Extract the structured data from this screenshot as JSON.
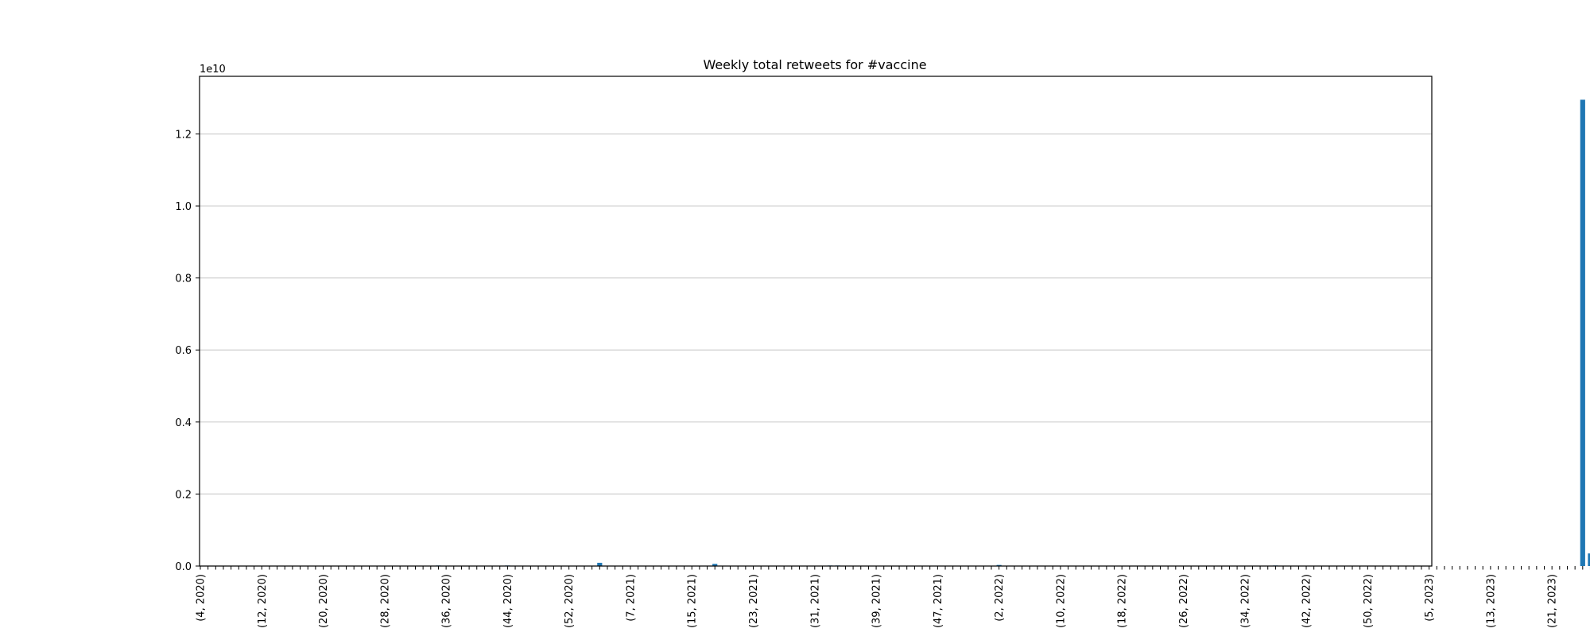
{
  "chart_data": {
    "type": "bar",
    "title": "Weekly total retweets for #vaccine",
    "xlabel": "",
    "ylabel": "",
    "y_offset_label": "1e10",
    "y_scale": 10000000000,
    "ylim": [
      0,
      13600000000
    ],
    "grid": "horizontal",
    "bar_color": "#1f77b4",
    "yticks": [
      0,
      2000000000,
      4000000000,
      6000000000,
      8000000000,
      10000000000,
      12000000000
    ],
    "ytick_labels": [
      "0.0",
      "0.2",
      "0.4",
      "0.6",
      "0.8",
      "1.0",
      "1.2"
    ],
    "start_week": 4,
    "start_year": 2020,
    "label_every": 8,
    "values": [
      0,
      0,
      0,
      0,
      0,
      0,
      0,
      0,
      0,
      0,
      0,
      0,
      0,
      0,
      0,
      0,
      0,
      0,
      0,
      0,
      0,
      0,
      0,
      0,
      0,
      0,
      0,
      0,
      0,
      0,
      0,
      15000000,
      0,
      0,
      0,
      0,
      0,
      0,
      0,
      0,
      15000000,
      0,
      0,
      0,
      0,
      0,
      0,
      0,
      0,
      0,
      0,
      0,
      90000000,
      0,
      0,
      0,
      0,
      0,
      0,
      0,
      0,
      0,
      0,
      0,
      0,
      0,
      0,
      60000000,
      0,
      0,
      0,
      0,
      0,
      0,
      0,
      0,
      0,
      0,
      0,
      0,
      0,
      0,
      15000000,
      15000000,
      0,
      0,
      0,
      0,
      0,
      0,
      0,
      0,
      0,
      0,
      0,
      0,
      0,
      0,
      0,
      0,
      0,
      0,
      0,
      0,
      30000000,
      0,
      0,
      0,
      0,
      0,
      0,
      0,
      0,
      0,
      0,
      0,
      0,
      0,
      0,
      0,
      0,
      0,
      0,
      0,
      0,
      0,
      0,
      0,
      0,
      0,
      0,
      0,
      0,
      0,
      0,
      0,
      0,
      0,
      0,
      0,
      15000000,
      0,
      0,
      0,
      0,
      0,
      0,
      0,
      0,
      0,
      0,
      0,
      0,
      0,
      0,
      0,
      0,
      0,
      0,
      0,
      0,
      0,
      0,
      0,
      0,
      0,
      0,
      0,
      0,
      0,
      0,
      0,
      0,
      0,
      0,
      0,
      0,
      0,
      0,
      0,
      12950000000,
      350000000,
      0,
      0,
      30000000,
      50000000,
      40000000,
      50000000,
      20000000,
      0,
      0,
      0,
      0,
      0,
      10000000,
      0,
      0,
      0,
      0
    ]
  }
}
